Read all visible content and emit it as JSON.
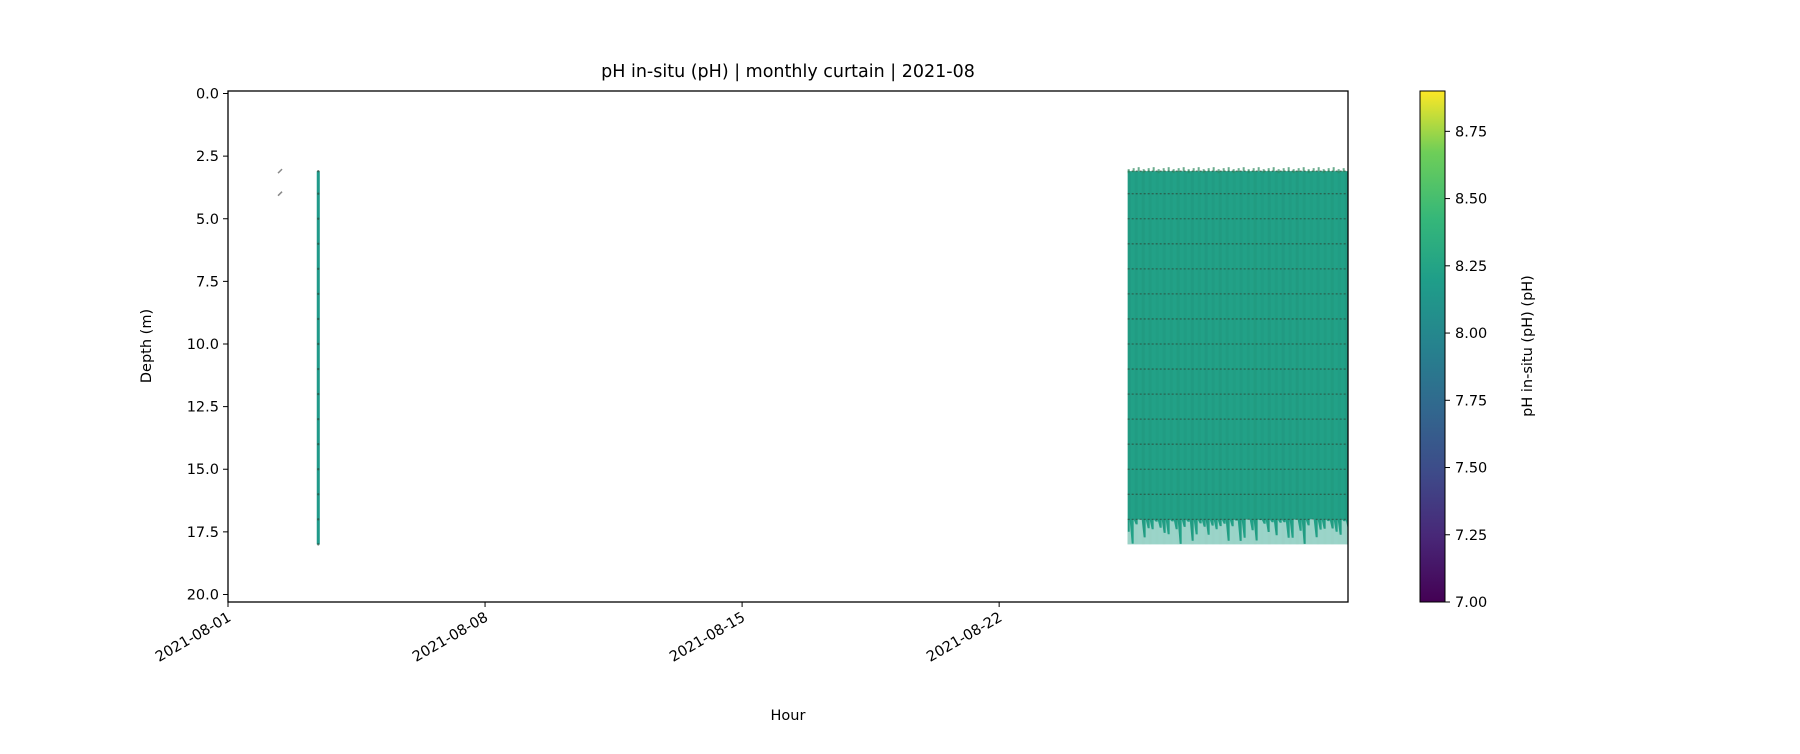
{
  "chart_data": {
    "type": "heatmap",
    "title": "pH in-situ (pH) | monthly curtain | 2021-08",
    "xlabel": "Hour",
    "ylabel": "Depth (m)",
    "x_type": "date",
    "xlim": [
      "2021-08-01",
      "2021-08-31T12:00"
    ],
    "ylim": [
      20.3,
      -0.1
    ],
    "y_inverted": true,
    "x_ticks": [
      "2021-08-01",
      "2021-08-08",
      "2021-08-15",
      "2021-08-22"
    ],
    "y_ticks": [
      "0.0",
      "2.5",
      "5.0",
      "7.5",
      "10.0",
      "12.5",
      "15.0",
      "17.5",
      "20.0"
    ],
    "colorbar": {
      "label": "pH in-situ (pH) (pH)",
      "colormap": "viridis",
      "range": [
        7.0,
        8.9
      ],
      "ticks": [
        "7.00",
        "7.25",
        "7.50",
        "7.75",
        "8.00",
        "8.25",
        "8.50",
        "8.75"
      ]
    },
    "profile_depths": [
      3.1,
      4.0,
      5.0,
      6.0,
      7.0,
      8.0,
      9.0,
      10.0,
      11.0,
      12.0,
      13.0,
      14.0,
      15.0,
      16.0,
      17.0,
      18.0
    ],
    "blocks": [
      {
        "start": "2021-08-03T10:00",
        "end": "2021-08-03T12:00",
        "depth_top": 3.1,
        "depth_bottom": 18.0,
        "value": 8.15
      },
      {
        "start": "2021-08-25T12:00",
        "end": "2021-08-31T12:00",
        "depth_top": 3.1,
        "depth_bottom": 18.0,
        "value": 8.22
      }
    ],
    "stray_points": [
      {
        "time": "2021-08-02T10:00",
        "depth": 3.1
      },
      {
        "time": "2021-08-02T10:00",
        "depth": 4.0
      }
    ]
  }
}
